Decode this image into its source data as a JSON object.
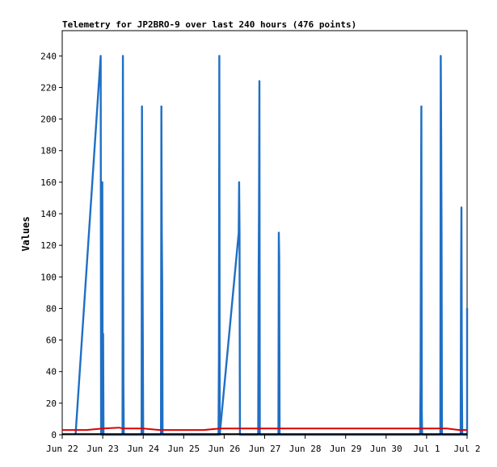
{
  "chart_data": {
    "type": "line",
    "title": "Telemetry for JP2BRO-9 over last 240 hours (476 points)",
    "xlabel": "",
    "ylabel": "Values",
    "ylim": [
      0,
      256
    ],
    "yticks": [
      0,
      20,
      40,
      60,
      80,
      100,
      120,
      140,
      160,
      180,
      200,
      220,
      240
    ],
    "xlim": [
      0,
      10
    ],
    "x_tick_labels": [
      "Jun 22",
      "Jun 23",
      "Jun 24",
      "Jun 25",
      "Jun 26",
      "Jun 27",
      "Jun 28",
      "Jun 29",
      "Jun 30",
      "Jul 1",
      "Jul 2"
    ],
    "grid": false,
    "colors": {
      "blue": "#1f6fc5",
      "red": "#dd0000",
      "black": "#000000"
    },
    "series": [
      {
        "color": "#1f6fc5",
        "points": [
          [
            0.33,
            0
          ],
          [
            0.95,
            240
          ],
          [
            0.96,
            0
          ],
          [
            0.98,
            120
          ],
          [
            0.99,
            160
          ],
          [
            1.0,
            0
          ],
          [
            1.01,
            64
          ],
          [
            1.02,
            0
          ],
          [
            1.49,
            0
          ],
          [
            1.5,
            240
          ],
          [
            1.51,
            32
          ],
          [
            1.52,
            0
          ],
          [
            1.96,
            0
          ],
          [
            1.97,
            208
          ],
          [
            1.98,
            128
          ],
          [
            1.99,
            64
          ],
          [
            2.0,
            0
          ],
          [
            2.44,
            0
          ],
          [
            2.45,
            208
          ],
          [
            2.46,
            128
          ],
          [
            2.47,
            96
          ],
          [
            2.48,
            0
          ],
          [
            3.86,
            0
          ],
          [
            3.87,
            48
          ],
          [
            3.88,
            240
          ],
          [
            3.89,
            0
          ],
          [
            4.36,
            128
          ],
          [
            4.37,
            160
          ],
          [
            4.38,
            128
          ],
          [
            4.39,
            0
          ],
          [
            4.84,
            0
          ],
          [
            4.85,
            96
          ],
          [
            4.86,
            144
          ],
          [
            4.87,
            224
          ],
          [
            4.88,
            0
          ],
          [
            5.34,
            0
          ],
          [
            5.35,
            128
          ],
          [
            5.36,
            112
          ],
          [
            5.37,
            0
          ],
          [
            8.84,
            0
          ],
          [
            8.85,
            32
          ],
          [
            8.86,
            128
          ],
          [
            8.87,
            208
          ],
          [
            8.88,
            16
          ],
          [
            8.89,
            0
          ],
          [
            9.34,
            0
          ],
          [
            9.35,
            240
          ],
          [
            9.36,
            192
          ],
          [
            9.37,
            128
          ],
          [
            9.38,
            0
          ],
          [
            9.84,
            0
          ],
          [
            9.85,
            96
          ],
          [
            9.86,
            144
          ],
          [
            9.87,
            40
          ],
          [
            9.88,
            0
          ],
          [
            10.34,
            0
          ],
          [
            10.35,
            80
          ],
          [
            10.36,
            80
          ],
          [
            10.37,
            0
          ]
        ]
      },
      {
        "color": "#dd0000",
        "points": [
          [
            0.0,
            3
          ],
          [
            0.6,
            3
          ],
          [
            1.0,
            4
          ],
          [
            1.4,
            4.5
          ],
          [
            1.5,
            4
          ],
          [
            2.0,
            4
          ],
          [
            2.4,
            3
          ],
          [
            3.0,
            3
          ],
          [
            3.5,
            3
          ],
          [
            3.9,
            4
          ],
          [
            5.0,
            4
          ],
          [
            7.0,
            4
          ],
          [
            9.0,
            4
          ],
          [
            9.5,
            4
          ],
          [
            9.8,
            3
          ],
          [
            10.35,
            3
          ]
        ]
      },
      {
        "color": "#000000",
        "points": [
          [
            0.0,
            0.4
          ],
          [
            10.35,
            0.4
          ]
        ]
      }
    ]
  }
}
